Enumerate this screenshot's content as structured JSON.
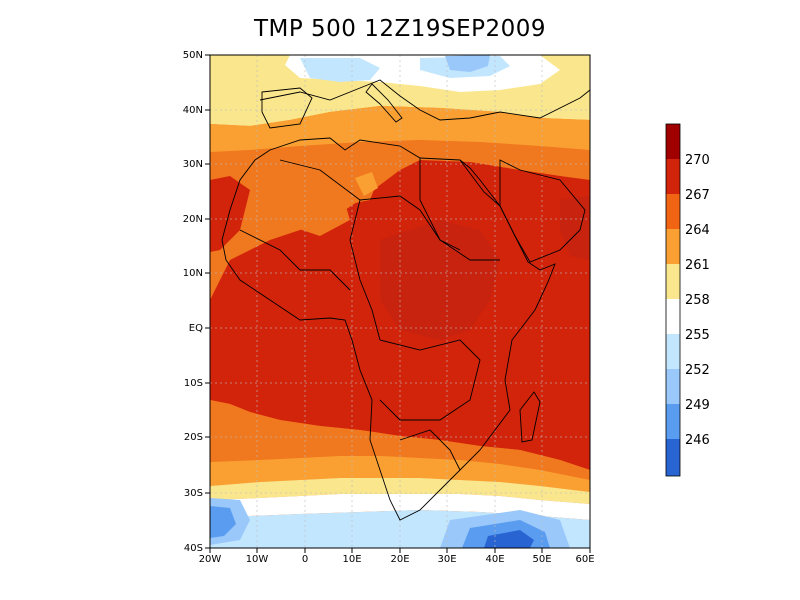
{
  "title": "TMP 500 12Z19SEP2009",
  "lat_labels": [
    "50N",
    "40N",
    "30N",
    "20N",
    "10N",
    "EQ",
    "10S",
    "20S",
    "30S",
    "40S"
  ],
  "lon_labels": [
    "20W",
    "10W",
    "0",
    "10E",
    "20E",
    "30E",
    "40E",
    "50E",
    "60E"
  ],
  "colorbar": {
    "levels": [
      "270",
      "267",
      "264",
      "261",
      "258",
      "255",
      "252",
      "249",
      "246"
    ],
    "colors": [
      "#a00000",
      "#d2230b",
      "#f06414",
      "#faa032",
      "#fae68c",
      "#ffffff",
      "#c3e6ff",
      "#9ac8fa",
      "#5a9cf0",
      "#2864d2"
    ]
  },
  "palette": {
    "dark_red": "#c8230f",
    "red": "#d2230b",
    "orange_red": "#e6461e",
    "orange": "#f0781e",
    "light_orange": "#faa032",
    "yellow": "#fae68c",
    "white": "#ffffff",
    "light_blue": "#c3e6ff",
    "blue": "#9ac8fa",
    "mid_blue": "#5a9cf0",
    "dark_blue": "#2864d2"
  }
}
